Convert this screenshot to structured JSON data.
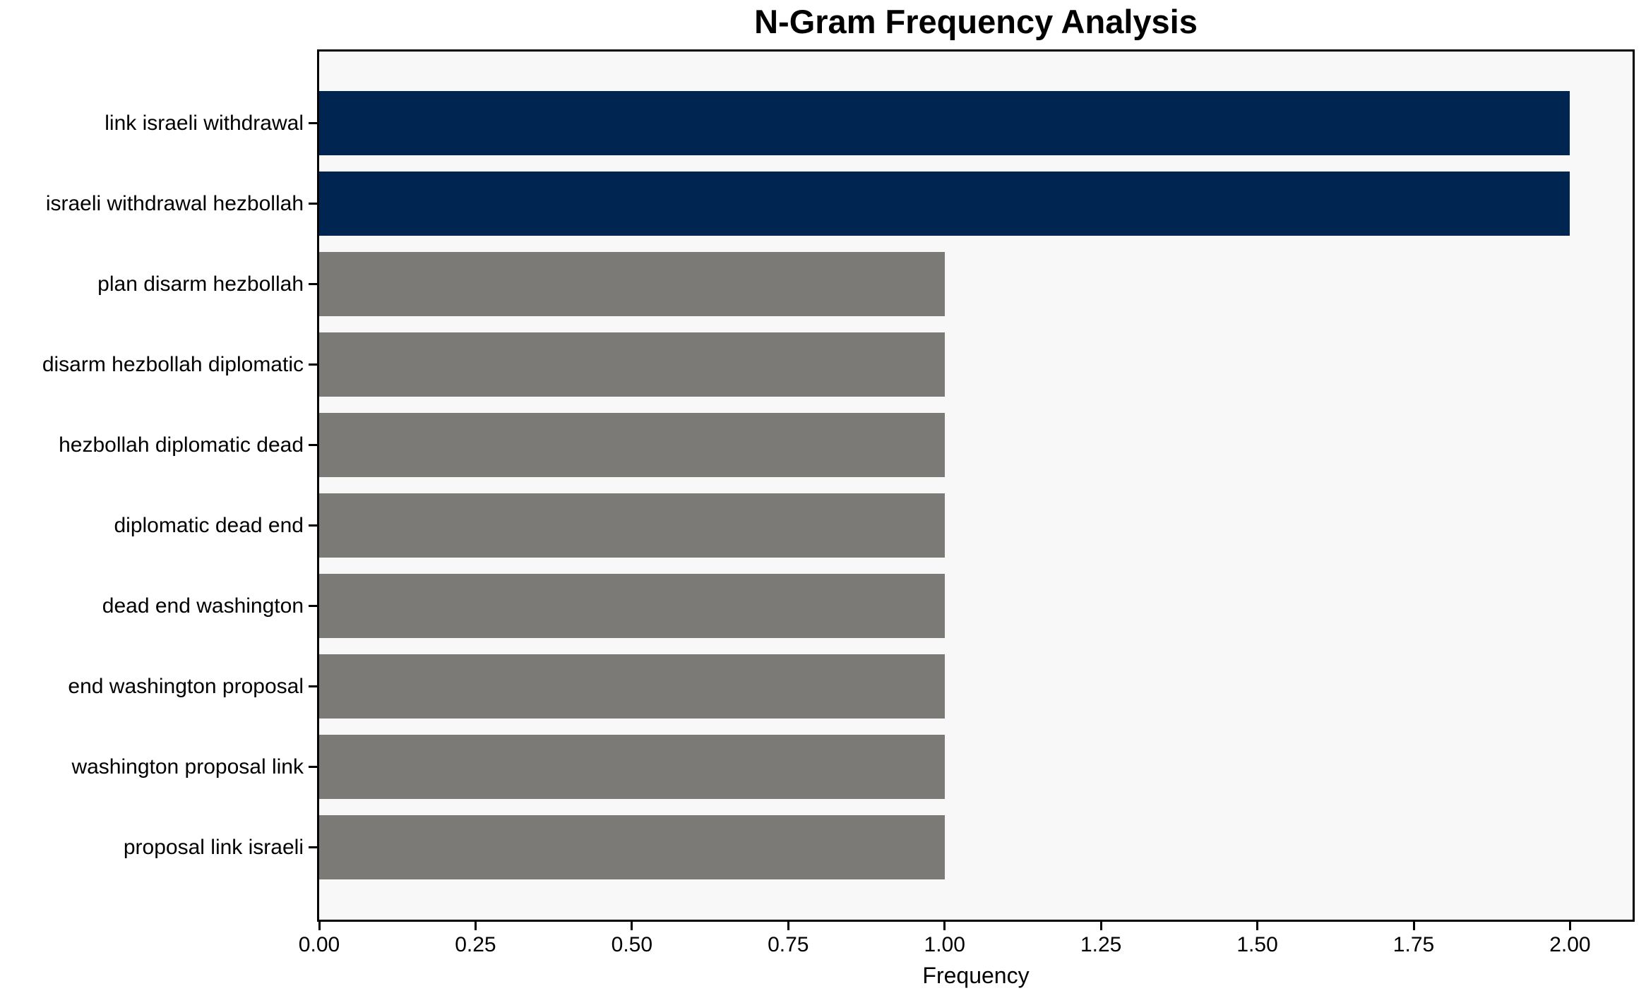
{
  "chart_data": {
    "type": "bar",
    "orientation": "horizontal",
    "title": "N-Gram Frequency Analysis",
    "xlabel": "Frequency",
    "ylabel": "",
    "categories": [
      "link israeli withdrawal",
      "israeli withdrawal hezbollah",
      "plan disarm hezbollah",
      "disarm hezbollah diplomatic",
      "hezbollah diplomatic dead",
      "diplomatic dead end",
      "dead end washington",
      "end washington proposal",
      "washington proposal link",
      "proposal link israeli"
    ],
    "values": [
      2,
      2,
      1,
      1,
      1,
      1,
      1,
      1,
      1,
      1
    ],
    "bar_colors": [
      "#002550",
      "#002550",
      "#7b7a77",
      "#7b7a77",
      "#7b7a77",
      "#7b7a77",
      "#7b7a77",
      "#7b7a77",
      "#7b7a77",
      "#7b7a77"
    ],
    "xlim": [
      0,
      2.1
    ],
    "xticks": [
      0,
      0.25,
      0.5,
      0.75,
      1,
      1.25,
      1.5,
      1.75,
      2
    ],
    "xtick_labels": [
      "0.00",
      "0.25",
      "0.50",
      "0.75",
      "1.00",
      "1.25",
      "1.50",
      "1.75",
      "2.00"
    ],
    "grid": false,
    "legend": "none",
    "colors": {
      "highlight_bar": "#002550",
      "default_bar": "#7b7a77",
      "plot_background": "#f8f8f8",
      "figure_background": "#ffffff",
      "spine": "#000000",
      "text": "#000000"
    }
  }
}
